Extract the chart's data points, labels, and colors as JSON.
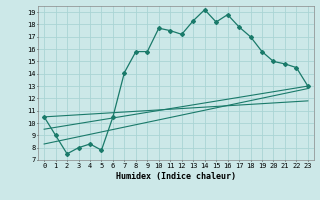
{
  "title": "",
  "xlabel": "Humidex (Indice chaleur)",
  "ylabel": "",
  "background_color": "#cce8e8",
  "line_color": "#1a7a6a",
  "grid_color": "#aad4d4",
  "xlim": [
    -0.5,
    23.5
  ],
  "ylim": [
    7,
    19.5
  ],
  "yticks": [
    7,
    8,
    9,
    10,
    11,
    12,
    13,
    14,
    15,
    16,
    17,
    18,
    19
  ],
  "xticks": [
    0,
    1,
    2,
    3,
    4,
    5,
    6,
    7,
    8,
    9,
    10,
    11,
    12,
    13,
    14,
    15,
    16,
    17,
    18,
    19,
    20,
    21,
    22,
    23
  ],
  "line1_x": [
    0,
    1,
    2,
    3,
    4,
    5,
    6,
    7,
    8,
    9,
    10,
    11,
    12,
    13,
    14,
    15,
    16,
    17,
    18,
    19,
    20,
    21,
    22,
    23
  ],
  "line1_y": [
    10.5,
    9.0,
    7.5,
    8.0,
    8.3,
    7.8,
    10.5,
    14.1,
    15.8,
    15.8,
    17.7,
    17.5,
    17.2,
    18.3,
    19.2,
    18.2,
    18.8,
    17.8,
    17.0,
    15.8,
    15.0,
    14.8,
    14.5,
    13.0
  ],
  "line2_x": [
    0,
    23
  ],
  "line2_y": [
    8.3,
    12.8
  ],
  "line3_x": [
    0,
    23
  ],
  "line3_y": [
    9.5,
    13.0
  ],
  "line4_x": [
    0,
    23
  ],
  "line4_y": [
    10.5,
    11.8
  ]
}
